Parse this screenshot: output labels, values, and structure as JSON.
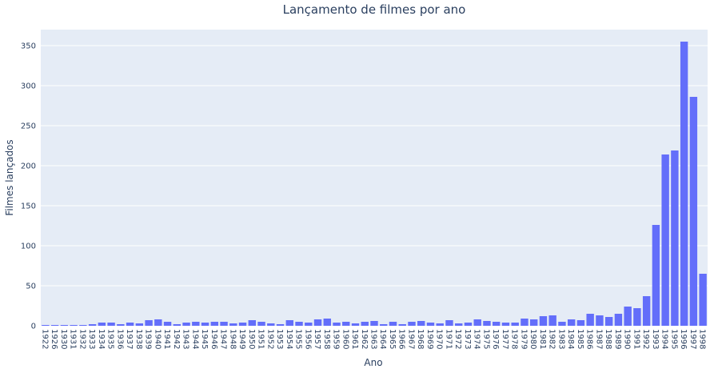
{
  "chart_data": {
    "type": "bar",
    "title": "Lançamento de filmes por ano",
    "xlabel": "Ano",
    "ylabel": "Filmes lançados",
    "ylim": [
      0,
      370
    ],
    "yticks": [
      0,
      50,
      100,
      150,
      200,
      250,
      300,
      350
    ],
    "grid": true,
    "bar_color": "#636efa",
    "plot_bgcolor": "#e5ecf6",
    "categories": [
      "1922",
      "1926",
      "1930",
      "1931",
      "1932",
      "1933",
      "1934",
      "1935",
      "1936",
      "1937",
      "1938",
      "1939",
      "1940",
      "1941",
      "1942",
      "1943",
      "1944",
      "1945",
      "1946",
      "1947",
      "1948",
      "1949",
      "1950",
      "1951",
      "1952",
      "1953",
      "1954",
      "1955",
      "1956",
      "1957",
      "1958",
      "1959",
      "1960",
      "1961",
      "1962",
      "1963",
      "1964",
      "1965",
      "1966",
      "1967",
      "1968",
      "1969",
      "1970",
      "1971",
      "1972",
      "1973",
      "1974",
      "1975",
      "1976",
      "1977",
      "1978",
      "1979",
      "1980",
      "1981",
      "1982",
      "1983",
      "1984",
      "1985",
      "1986",
      "1987",
      "1988",
      "1989",
      "1990",
      "1991",
      "1992",
      "1993",
      "1994",
      "1995",
      "1996",
      "1997",
      "1998"
    ],
    "values": [
      1,
      1,
      1,
      1,
      1,
      2,
      4,
      4,
      2,
      4,
      3,
      7,
      8,
      5,
      2,
      4,
      5,
      4,
      5,
      5,
      3,
      4,
      7,
      5,
      3,
      2,
      7,
      5,
      4,
      8,
      9,
      4,
      5,
      3,
      5,
      6,
      2,
      5,
      2,
      5,
      6,
      4,
      3,
      7,
      3,
      4,
      8,
      6,
      5,
      4,
      4,
      9,
      8,
      12,
      13,
      5,
      8,
      7,
      15,
      13,
      11,
      15,
      24,
      22,
      37,
      126,
      214,
      219,
      355,
      286,
      65
    ]
  }
}
